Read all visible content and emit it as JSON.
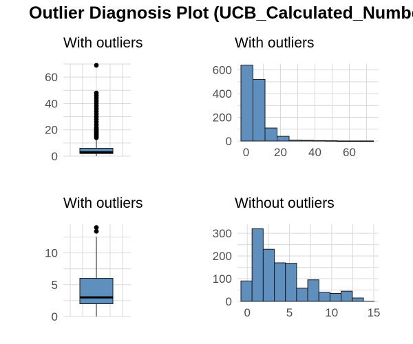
{
  "title": "Outlier Diagnosis Plot (UCB_Calculated_Number",
  "colors": {
    "fill": "#5f8fbd",
    "stroke": "#1a1a1a",
    "grid": "#d9d9d9",
    "point": "#000000"
  },
  "chart_data": [
    {
      "type": "box",
      "title": "With outliers",
      "ylim": [
        0,
        70
      ],
      "yticks": [
        "0",
        "20",
        "40",
        "60"
      ],
      "ytick_values": [
        0,
        20,
        40,
        60
      ],
      "grid": true,
      "box": {
        "min": 0,
        "q1": 2,
        "median": 3,
        "q3": 6,
        "whisker_high": 12
      },
      "outliers": [
        14,
        15,
        16,
        17,
        18,
        19,
        20,
        21,
        22,
        24,
        26,
        28,
        30,
        32,
        34,
        36,
        38,
        40,
        42,
        44,
        46,
        48,
        69
      ]
    },
    {
      "type": "bar",
      "title": "With outliers",
      "xlim": [
        -3,
        73
      ],
      "ylim": [
        0,
        650
      ],
      "xticks": [
        "0",
        "20",
        "40",
        "60"
      ],
      "xtick_values": [
        0,
        20,
        40,
        60
      ],
      "yticks": [
        "0",
        "200",
        "400",
        "600"
      ],
      "ytick_values": [
        0,
        200,
        400,
        600
      ],
      "grid": true,
      "bin_width": 7,
      "bin_starts": [
        -3,
        4,
        11,
        18,
        25,
        32,
        39,
        46,
        53,
        60,
        67
      ],
      "values": [
        640,
        520,
        110,
        40,
        8,
        6,
        4,
        3,
        1,
        1,
        1
      ]
    },
    {
      "type": "box",
      "title": "With outliers",
      "ylim": [
        0,
        14.5
      ],
      "yticks": [
        "0",
        "5",
        "10"
      ],
      "ytick_values": [
        0,
        5,
        10
      ],
      "grid": true,
      "box": {
        "min": 0,
        "q1": 2,
        "median": 3,
        "q3": 6,
        "whisker_high": 12.5
      },
      "outliers": [
        13.4,
        14
      ]
    },
    {
      "type": "bar",
      "title": "Without outliers",
      "xlim": [
        -0.75,
        14.75
      ],
      "ylim": [
        0,
        340
      ],
      "xticks": [
        "0",
        "5",
        "10",
        "15"
      ],
      "xtick_values": [
        0,
        5,
        10,
        15
      ],
      "yticks": [
        "0",
        "100",
        "200",
        "300"
      ],
      "ytick_values": [
        0,
        100,
        200,
        300
      ],
      "grid": true,
      "bin_width": 1.32,
      "bin_starts": [
        -0.75,
        0.57,
        1.89,
        3.21,
        4.53,
        5.85,
        7.17,
        8.49,
        9.81,
        11.13,
        12.45,
        13.77
      ],
      "values": [
        90,
        320,
        230,
        170,
        168,
        58,
        95,
        40,
        35,
        45,
        15,
        0
      ]
    }
  ]
}
